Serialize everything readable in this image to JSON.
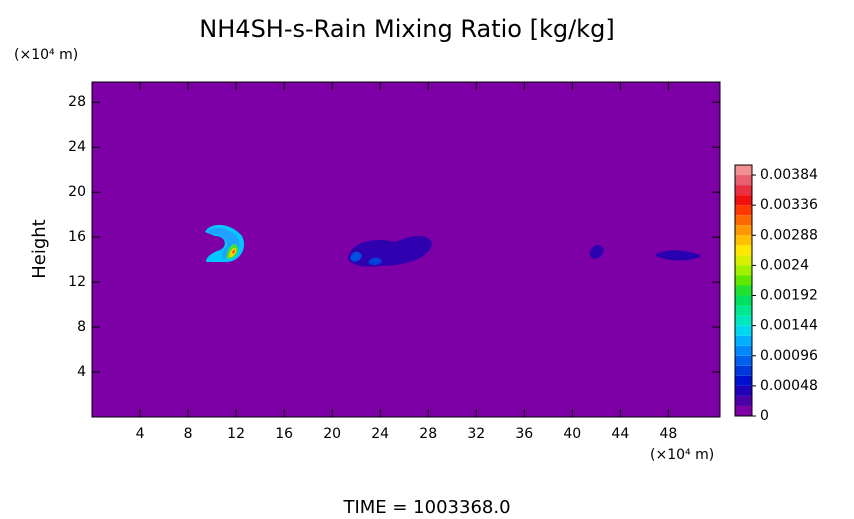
{
  "chart_data": {
    "type": "heatmap",
    "title": "NH4SH-s-Rain Mixing Ratio [kg/kg]",
    "x_unit_label": "(×10⁴ m)",
    "y_unit_label": "(×10⁴ m)",
    "y_label": "Height",
    "footer": "TIME = 1003368.0",
    "xlim": [
      0,
      52.3
    ],
    "xticks": [
      4,
      8,
      12,
      16,
      20,
      24,
      28,
      32,
      36,
      40,
      44,
      48
    ],
    "ylim": [
      0,
      29.8
    ],
    "yticks": [
      4,
      8,
      12,
      16,
      20,
      24,
      28
    ],
    "clim": [
      0,
      0.004
    ],
    "cticks": [
      0,
      0.00048,
      0.00096,
      0.00144,
      0.00192,
      0.0024,
      0.00288,
      0.00336,
      0.00384
    ],
    "colormap": [
      "#7d00a6",
      "#4e00a8",
      "#2000b8",
      "#0010d0",
      "#0038e0",
      "#0060f0",
      "#0088ff",
      "#00b0ff",
      "#00d8f0",
      "#00e8c0",
      "#00e890",
      "#00e060",
      "#20e030",
      "#60e800",
      "#a0f000",
      "#d8f000",
      "#ffe800",
      "#ffc000",
      "#ff9800",
      "#ff6800",
      "#ff3800",
      "#f01010",
      "#e83040",
      "#e86070",
      "#f09090"
    ]
  }
}
